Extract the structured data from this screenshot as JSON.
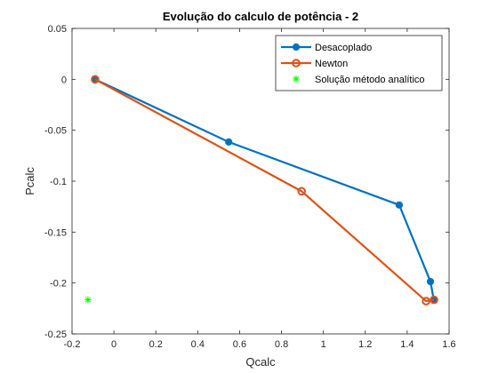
{
  "chart_data": {
    "type": "line",
    "title": "Evolução do calculo de potência - 2",
    "xlabel": "Qcalc",
    "ylabel": "Pcalc",
    "xlim": [
      -0.2,
      1.6
    ],
    "ylim": [
      -0.25,
      0.05
    ],
    "xticks": [
      -0.2,
      0,
      0.2,
      0.4,
      0.6,
      0.8,
      1,
      1.2,
      1.4,
      1.6
    ],
    "xtick_labels": [
      "-0.2",
      "0",
      "0.2",
      "0.4",
      "0.6",
      "0.8",
      "1",
      "1.2",
      "1.4",
      "1.6"
    ],
    "yticks": [
      -0.25,
      -0.2,
      -0.15,
      -0.1,
      -0.05,
      0,
      0.05
    ],
    "ytick_labels": [
      "-0.25",
      "-0.2",
      "-0.15",
      "-0.1",
      "-0.05",
      "0",
      "0.05"
    ],
    "grid": false,
    "legend_position": "top-right",
    "series": [
      {
        "name": "Desacoplado",
        "color": "#0072BD",
        "marker": "filled-circle",
        "x": [
          -0.09,
          0.548,
          1.362,
          1.511,
          1.527
        ],
        "y": [
          0.0,
          -0.0615,
          -0.1234,
          -0.1986,
          -0.2165
        ]
      },
      {
        "name": "Newton",
        "color": "#D95319",
        "marker": "open-circle",
        "x": [
          -0.09,
          0.896,
          1.49,
          1.528
        ],
        "y": [
          0.0,
          -0.1099,
          -0.2178,
          -0.2165
        ]
      },
      {
        "name": "Solução método analítico",
        "color": "#00FF00",
        "marker": "asterisk",
        "x": [
          -0.124
        ],
        "y": [
          -0.2165
        ]
      }
    ]
  }
}
